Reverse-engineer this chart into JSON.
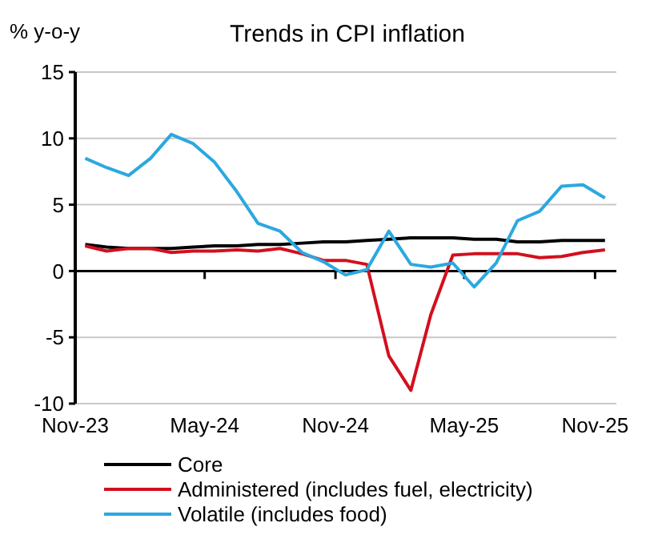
{
  "chart_data": {
    "type": "line",
    "title": "Trends in CPI inflation",
    "ylabel": "% y-o-y",
    "x": [
      "2023-11-15",
      "2023-12-15",
      "2024-01-15",
      "2024-02-15",
      "2024-03-15",
      "2024-04-15",
      "2024-05-15",
      "2024-06-15",
      "2024-07-15",
      "2024-08-15",
      "2024-09-15",
      "2024-10-15",
      "2024-11-15",
      "2024-12-15",
      "2025-01-15",
      "2025-02-15",
      "2025-03-15",
      "2025-04-15",
      "2025-05-15",
      "2025-06-15",
      "2025-07-15",
      "2025-08-15",
      "2025-09-15",
      "2025-10-15",
      "2025-11-15"
    ],
    "series": [
      {
        "name": "Core",
        "color": "#000000",
        "values": [
          2.0,
          1.8,
          1.7,
          1.7,
          1.7,
          1.8,
          1.9,
          1.9,
          2.0,
          2.0,
          2.1,
          2.2,
          2.2,
          2.3,
          2.4,
          2.5,
          2.5,
          2.5,
          2.4,
          2.4,
          2.2,
          2.2,
          2.3,
          2.3,
          2.3
        ]
      },
      {
        "name": "Administered (includes fuel, electricity)",
        "color": "#d2101e",
        "values": [
          1.9,
          1.5,
          1.7,
          1.7,
          1.4,
          1.5,
          1.5,
          1.6,
          1.5,
          1.7,
          1.3,
          0.8,
          0.8,
          0.5,
          -6.4,
          -9.0,
          -3.3,
          1.2,
          1.3,
          1.3,
          1.3,
          1.0,
          1.1,
          1.4,
          1.6
        ]
      },
      {
        "name": "Volatile (includes food)",
        "color": "#2ba8e0",
        "values": [
          8.5,
          7.8,
          7.2,
          8.5,
          10.3,
          9.6,
          8.2,
          6.0,
          3.6,
          3.0,
          1.4,
          0.7,
          -0.3,
          0.1,
          3.0,
          0.5,
          0.3,
          0.6,
          -1.2,
          0.6,
          3.8,
          4.5,
          6.4,
          6.5,
          5.5
        ]
      }
    ],
    "xlim": [
      "2023-11-01",
      "2025-12-01"
    ],
    "xticks": [
      {
        "value": "2023-11-01",
        "label": "Nov-23"
      },
      {
        "value": "2024-05-01",
        "label": "May-24"
      },
      {
        "value": "2024-11-01",
        "label": "Nov-24"
      },
      {
        "value": "2025-05-01",
        "label": "May-25"
      },
      {
        "value": "2025-11-01",
        "label": "Nov-25"
      }
    ],
    "ylim": [
      -10,
      15
    ],
    "yticks": [
      -10,
      -5,
      0,
      5,
      10,
      15
    ],
    "grid": "y",
    "legend": "bottom",
    "marker": "none",
    "line_style": "solid"
  }
}
